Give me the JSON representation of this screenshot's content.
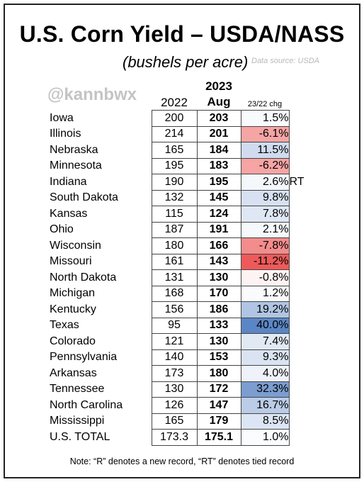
{
  "title": "U.S. Corn Yield – USDA/NASS",
  "subtitle": "(bushels per acre)",
  "source": "Data source: USDA",
  "watermark": "@kannbwx",
  "headers": {
    "col2022": "2022",
    "col2023_line1": "2023",
    "col2023_line2": "Aug",
    "chg": "23/22 chg"
  },
  "rows": [
    {
      "state": "Iowa",
      "y2022": "200",
      "y2023": "203",
      "chg": "1.5%",
      "chg_num": 1.5,
      "mark": ""
    },
    {
      "state": "Illinois",
      "y2022": "214",
      "y2023": "201",
      "chg": "-6.1%",
      "chg_num": -6.1,
      "mark": ""
    },
    {
      "state": "Nebraska",
      "y2022": "165",
      "y2023": "184",
      "chg": "11.5%",
      "chg_num": 11.5,
      "mark": ""
    },
    {
      "state": "Minnesota",
      "y2022": "195",
      "y2023": "183",
      "chg": "-6.2%",
      "chg_num": -6.2,
      "mark": ""
    },
    {
      "state": "Indiana",
      "y2022": "190",
      "y2023": "195",
      "chg": "2.6%",
      "chg_num": 2.6,
      "mark": "RT"
    },
    {
      "state": "South Dakota",
      "y2022": "132",
      "y2023": "145",
      "chg": "9.8%",
      "chg_num": 9.8,
      "mark": ""
    },
    {
      "state": "Kansas",
      "y2022": "115",
      "y2023": "124",
      "chg": "7.8%",
      "chg_num": 7.8,
      "mark": ""
    },
    {
      "state": "Ohio",
      "y2022": "187",
      "y2023": "191",
      "chg": "2.1%",
      "chg_num": 2.1,
      "mark": ""
    },
    {
      "state": "Wisconsin",
      "y2022": "180",
      "y2023": "166",
      "chg": "-7.8%",
      "chg_num": -7.8,
      "mark": ""
    },
    {
      "state": "Missouri",
      "y2022": "161",
      "y2023": "143",
      "chg": "-11.2%",
      "chg_num": -11.2,
      "mark": ""
    },
    {
      "state": "North Dakota",
      "y2022": "131",
      "y2023": "130",
      "chg": "-0.8%",
      "chg_num": -0.8,
      "mark": ""
    },
    {
      "state": "Michigan",
      "y2022": "168",
      "y2023": "170",
      "chg": "1.2%",
      "chg_num": 1.2,
      "mark": ""
    },
    {
      "state": "Kentucky",
      "y2022": "156",
      "y2023": "186",
      "chg": "19.2%",
      "chg_num": 19.2,
      "mark": ""
    },
    {
      "state": "Texas",
      "y2022": "95",
      "y2023": "133",
      "chg": "40.0%",
      "chg_num": 40.0,
      "mark": ""
    },
    {
      "state": "Colorado",
      "y2022": "121",
      "y2023": "130",
      "chg": "7.4%",
      "chg_num": 7.4,
      "mark": ""
    },
    {
      "state": "Pennsylvania",
      "y2022": "140",
      "y2023": "153",
      "chg": "9.3%",
      "chg_num": 9.3,
      "mark": ""
    },
    {
      "state": "Arkansas",
      "y2022": "173",
      "y2023": "180",
      "chg": "4.0%",
      "chg_num": 4.0,
      "mark": ""
    },
    {
      "state": "Tennessee",
      "y2022": "130",
      "y2023": "172",
      "chg": "32.3%",
      "chg_num": 32.3,
      "mark": ""
    },
    {
      "state": "North Carolina",
      "y2022": "126",
      "y2023": "147",
      "chg": "16.7%",
      "chg_num": 16.7,
      "mark": ""
    },
    {
      "state": "Mississippi",
      "y2022": "165",
      "y2023": "179",
      "chg": "8.5%",
      "chg_num": 8.5,
      "mark": ""
    },
    {
      "state": "U.S. TOTAL",
      "y2022": "173.3",
      "y2023": "175.1",
      "chg": "1.0%",
      "chg_num": 1.0,
      "mark": ""
    }
  ],
  "note": "Note: “R” denotes a new record, “RT” denotes tied record",
  "colors": {
    "positive": "#5b86c5",
    "negative": "#ee5a5a"
  }
}
